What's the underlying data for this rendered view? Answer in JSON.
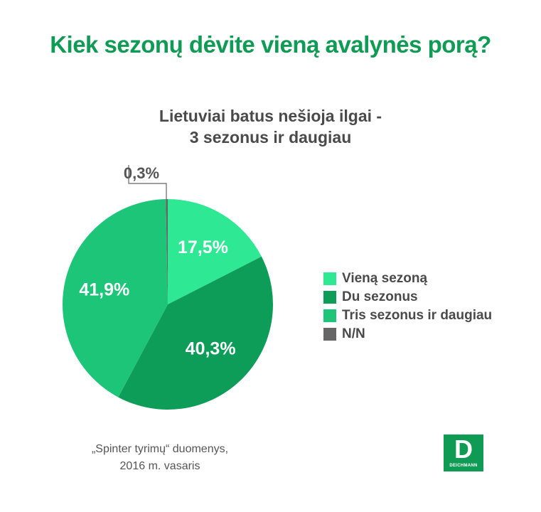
{
  "title": "Kiek sezonų dėvite vieną avalynės porą?",
  "subtitle_line1": "Lietuviai batus nešioja ilgai -",
  "subtitle_line2": "3 sezonus ir daugiau",
  "source_line1": "„Spinter tyrimų“ duomenys,",
  "source_line2": "2016 m. vasaris",
  "logo_text": "DEICHMANN",
  "logo_letter": "D",
  "chart_data": {
    "type": "pie",
    "slices": [
      {
        "label": "Vieną sezoną",
        "value": 17.5,
        "value_label": "17,5%",
        "color": "#2ee893"
      },
      {
        "label": "Du sezonus",
        "value": 40.3,
        "value_label": "40,3%",
        "color": "#0e9d59"
      },
      {
        "label": "Tris sezonus ir daugiau",
        "value": 41.9,
        "value_label": "41,9%",
        "color": "#1cc577"
      },
      {
        "label": "N/N",
        "value": 0.3,
        "value_label": "0,3%",
        "color": "#666666"
      }
    ]
  }
}
